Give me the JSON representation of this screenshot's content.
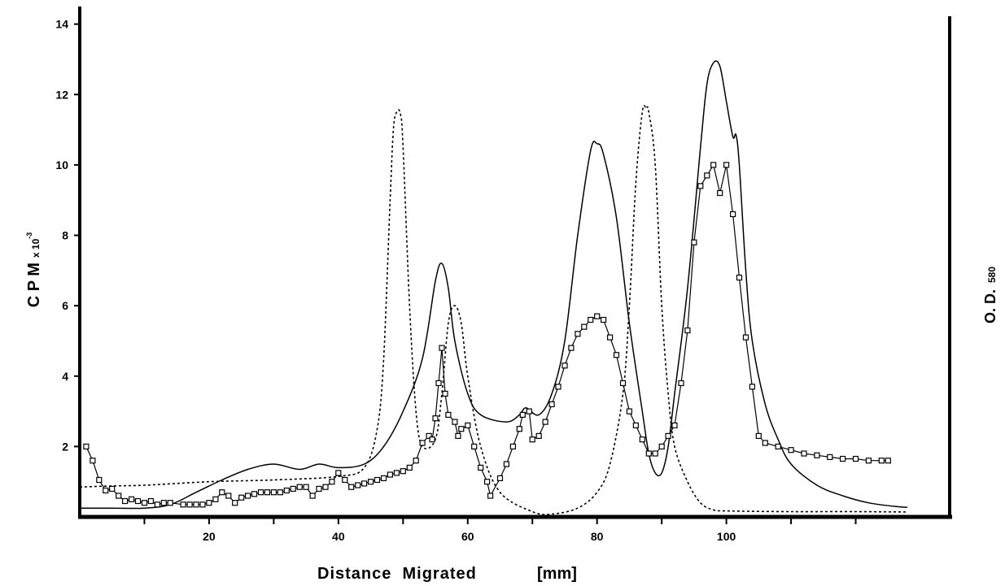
{
  "chart_data": {
    "type": "line",
    "title": "",
    "xlabel": "Distance  Migrated",
    "xunit": "[mm]",
    "ylabel": "C P M",
    "yunit": "x 10",
    "yexp": "-3",
    "ylabel_right": "O. D.",
    "ylabel_right_sub": "580",
    "xlim": [
      0,
      130
    ],
    "ylim": [
      0,
      14.5
    ],
    "x_ticks": [
      20,
      40,
      60,
      80,
      100
    ],
    "y_ticks": [
      2,
      4,
      6,
      8,
      10,
      12,
      14
    ],
    "grid": false,
    "legend": "none",
    "series": [
      {
        "style": "solid",
        "color": "#000000",
        "points": [
          [
            0,
            0.25
          ],
          [
            5,
            0.25
          ],
          [
            10,
            0.25
          ],
          [
            14,
            0.35
          ],
          [
            18,
            0.7
          ],
          [
            22,
            1.05
          ],
          [
            26,
            1.35
          ],
          [
            30,
            1.5
          ],
          [
            34,
            1.35
          ],
          [
            37,
            1.5
          ],
          [
            40,
            1.4
          ],
          [
            44,
            1.5
          ],
          [
            47,
            2.0
          ],
          [
            50,
            3.0
          ],
          [
            53,
            4.5
          ],
          [
            55,
            6.7
          ],
          [
            56,
            7.2
          ],
          [
            57,
            6.5
          ],
          [
            58,
            5.0
          ],
          [
            60,
            3.5
          ],
          [
            62,
            2.9
          ],
          [
            66,
            2.7
          ],
          [
            68,
            2.9
          ],
          [
            69,
            3.1
          ],
          [
            71,
            2.9
          ],
          [
            73,
            3.5
          ],
          [
            75,
            5.0
          ],
          [
            77,
            8.0
          ],
          [
            79,
            10.4
          ],
          [
            80,
            10.6
          ],
          [
            81,
            10.3
          ],
          [
            83,
            8.5
          ],
          [
            85,
            5.5
          ],
          [
            87,
            3.0
          ],
          [
            88,
            1.8
          ],
          [
            89,
            1.25
          ],
          [
            90,
            1.25
          ],
          [
            91,
            2.0
          ],
          [
            92,
            3.5
          ],
          [
            94,
            6.5
          ],
          [
            96,
            10.5
          ],
          [
            97,
            12.3
          ],
          [
            98,
            12.9
          ],
          [
            99,
            12.8
          ],
          [
            100,
            11.8
          ],
          [
            101,
            10.8
          ],
          [
            101.5,
            10.85
          ],
          [
            102,
            10.0
          ],
          [
            103,
            7.0
          ],
          [
            104,
            5.0
          ],
          [
            106,
            3.2
          ],
          [
            108,
            2.2
          ],
          [
            110,
            1.5
          ],
          [
            114,
            0.9
          ],
          [
            118,
            0.6
          ],
          [
            122,
            0.4
          ],
          [
            126,
            0.3
          ],
          [
            128,
            0.27
          ]
        ]
      },
      {
        "style": "dashed",
        "color": "#000000",
        "points": [
          [
            0,
            0.85
          ],
          [
            5,
            0.88
          ],
          [
            10,
            0.9
          ],
          [
            20,
            1.0
          ],
          [
            30,
            1.05
          ],
          [
            40,
            1.15
          ],
          [
            44,
            1.4
          ],
          [
            46,
            2.5
          ],
          [
            47,
            4.5
          ],
          [
            48,
            9.0
          ],
          [
            48.5,
            11.0
          ],
          [
            49,
            11.5
          ],
          [
            49.6,
            11.45
          ],
          [
            50,
            10.5
          ],
          [
            51,
            6.0
          ],
          [
            52,
            3.0
          ],
          [
            53,
            2.0
          ],
          [
            55,
            2.2
          ],
          [
            56,
            3.5
          ],
          [
            57,
            5.5
          ],
          [
            58,
            6.0
          ],
          [
            59,
            5.5
          ],
          [
            60,
            4.0
          ],
          [
            62,
            2.0
          ],
          [
            65,
            0.7
          ],
          [
            70,
            0.15
          ],
          [
            73,
            0.08
          ],
          [
            77,
            0.25
          ],
          [
            80,
            0.7
          ],
          [
            82,
            1.5
          ],
          [
            84,
            3.5
          ],
          [
            85,
            6.0
          ],
          [
            86,
            9.5
          ],
          [
            87,
            11.5
          ],
          [
            87.6,
            11.6
          ],
          [
            88,
            11.5
          ],
          [
            89,
            10.0
          ],
          [
            90,
            6.0
          ],
          [
            91,
            3.5
          ],
          [
            92,
            2.0
          ],
          [
            94,
            1.0
          ],
          [
            96,
            0.4
          ],
          [
            98,
            0.2
          ],
          [
            100,
            0.17
          ],
          [
            110,
            0.15
          ],
          [
            120,
            0.15
          ],
          [
            128,
            0.14
          ]
        ]
      },
      {
        "style": "markers",
        "marker": "square",
        "color": "#000000",
        "points": [
          [
            1,
            2.0
          ],
          [
            2,
            1.6
          ],
          [
            3,
            1.05
          ],
          [
            4,
            0.75
          ],
          [
            5,
            0.8
          ],
          [
            6,
            0.6
          ],
          [
            7,
            0.45
          ],
          [
            8,
            0.5
          ],
          [
            9,
            0.45
          ],
          [
            10,
            0.4
          ],
          [
            11,
            0.45
          ],
          [
            12,
            0.35
          ],
          [
            13,
            0.4
          ],
          [
            14,
            0.4
          ],
          [
            16,
            0.35
          ],
          [
            17,
            0.35
          ],
          [
            18,
            0.35
          ],
          [
            19,
            0.35
          ],
          [
            20,
            0.4
          ],
          [
            21,
            0.5
          ],
          [
            22,
            0.7
          ],
          [
            23,
            0.6
          ],
          [
            24,
            0.4
          ],
          [
            25,
            0.55
          ],
          [
            26,
            0.6
          ],
          [
            27,
            0.65
          ],
          [
            28,
            0.7
          ],
          [
            29,
            0.7
          ],
          [
            30,
            0.7
          ],
          [
            31,
            0.7
          ],
          [
            32,
            0.75
          ],
          [
            33,
            0.8
          ],
          [
            34,
            0.85
          ],
          [
            35,
            0.85
          ],
          [
            36,
            0.6
          ],
          [
            37,
            0.8
          ],
          [
            38,
            0.85
          ],
          [
            39,
            1.0
          ],
          [
            40,
            1.25
          ],
          [
            41,
            1.05
          ],
          [
            42,
            0.85
          ],
          [
            43,
            0.9
          ],
          [
            44,
            0.95
          ],
          [
            45,
            1.0
          ],
          [
            46,
            1.05
          ],
          [
            47,
            1.1
          ],
          [
            48,
            1.2
          ],
          [
            49,
            1.25
          ],
          [
            50,
            1.3
          ],
          [
            51,
            1.4
          ],
          [
            52,
            1.6
          ],
          [
            53,
            2.1
          ],
          [
            54,
            2.3
          ],
          [
            54.5,
            2.2
          ],
          [
            55,
            2.8
          ],
          [
            55.5,
            3.8
          ],
          [
            56,
            4.8
          ],
          [
            56.5,
            3.5
          ],
          [
            57,
            2.9
          ],
          [
            58,
            2.7
          ],
          [
            58.5,
            2.3
          ],
          [
            59,
            2.5
          ],
          [
            60,
            2.6
          ],
          [
            61,
            2.0
          ],
          [
            62,
            1.4
          ],
          [
            63,
            1.0
          ],
          [
            63.5,
            0.6
          ],
          [
            65,
            1.1
          ],
          [
            66,
            1.5
          ],
          [
            67,
            2.0
          ],
          [
            68,
            2.5
          ],
          [
            68.5,
            2.9
          ],
          [
            69.5,
            3.0
          ],
          [
            70,
            2.2
          ],
          [
            71,
            2.3
          ],
          [
            72,
            2.7
          ],
          [
            73,
            3.2
          ],
          [
            74,
            3.7
          ],
          [
            75,
            4.3
          ],
          [
            76,
            4.8
          ],
          [
            77,
            5.2
          ],
          [
            78,
            5.4
          ],
          [
            79,
            5.6
          ],
          [
            80,
            5.7
          ],
          [
            81,
            5.6
          ],
          [
            82,
            5.1
          ],
          [
            83,
            4.6
          ],
          [
            84,
            3.8
          ],
          [
            85,
            3.0
          ],
          [
            86,
            2.6
          ],
          [
            87,
            2.2
          ],
          [
            88,
            1.8
          ],
          [
            89,
            1.8
          ],
          [
            90,
            2.0
          ],
          [
            91,
            2.3
          ],
          [
            92,
            2.6
          ],
          [
            93,
            3.8
          ],
          [
            94,
            5.3
          ],
          [
            95,
            7.8
          ],
          [
            96,
            9.4
          ],
          [
            97,
            9.7
          ],
          [
            98,
            10.0
          ],
          [
            99,
            9.2
          ],
          [
            100,
            10.0
          ],
          [
            101,
            8.6
          ],
          [
            102,
            6.8
          ],
          [
            103,
            5.1
          ],
          [
            104,
            3.7
          ],
          [
            105,
            2.3
          ],
          [
            106,
            2.1
          ],
          [
            108,
            2.0
          ],
          [
            110,
            1.9
          ],
          [
            112,
            1.8
          ],
          [
            114,
            1.75
          ],
          [
            116,
            1.7
          ],
          [
            118,
            1.65
          ],
          [
            120,
            1.65
          ],
          [
            122,
            1.6
          ],
          [
            124,
            1.6
          ],
          [
            125,
            1.6
          ]
        ]
      }
    ]
  }
}
